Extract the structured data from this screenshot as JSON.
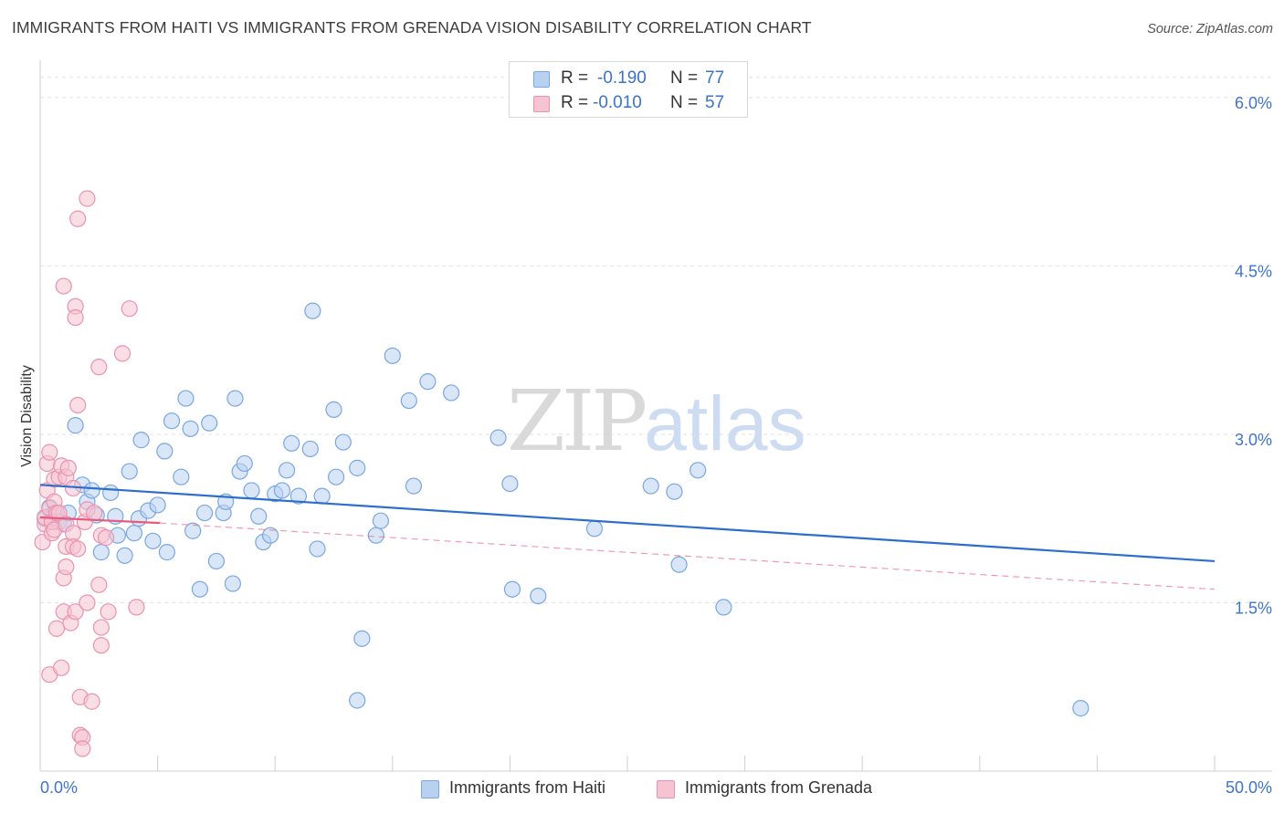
{
  "title": "IMMIGRANTS FROM HAITI VS IMMIGRANTS FROM GRENADA VISION DISABILITY CORRELATION CHART",
  "source": "Source: ZipAtlas.com",
  "watermark": {
    "zip": "ZIP",
    "atlas": "atlas"
  },
  "colors": {
    "haiti_fill": "#b9d1f0",
    "haiti_stroke": "#7aa7e0",
    "haiti_line": "#2b6fcb",
    "grenada_fill": "#f6c3d2",
    "grenada_stroke": "#ea93ae",
    "grenada_line": "#e8587f",
    "axis_text": "#3f74c8",
    "grid": "#e2e2e2"
  },
  "legend_top": [
    {
      "r_label": "R =",
      "r_value": "-0.190",
      "n_label": "N =",
      "n_value": "77"
    },
    {
      "r_label": "R =",
      "r_value": "-0.010",
      "n_label": "N =",
      "n_value": "57"
    }
  ],
  "legend_bottom": [
    "Immigrants from Haiti",
    "Immigrants from Grenada"
  ],
  "chart_data": {
    "type": "scatter",
    "title": "IMMIGRANTS FROM HAITI VS IMMIGRANTS FROM GRENADA VISION DISABILITY CORRELATION CHART",
    "xlabel": "",
    "ylabel": "Vision Disability",
    "xlim": [
      0,
      50
    ],
    "ylim": [
      0,
      6.3
    ],
    "x_tick_labels": [
      "0.0%",
      "50.0%"
    ],
    "y_ticks": [
      1.5,
      3.0,
      4.5,
      6.0
    ],
    "y_tick_labels": [
      "1.5%",
      "3.0%",
      "4.5%",
      "6.0%"
    ],
    "grid": true,
    "series": [
      {
        "name": "Immigrants from Haiti",
        "r": -0.19,
        "n": 77,
        "trend": {
          "x": [
            0,
            50
          ],
          "y": [
            2.55,
            1.87
          ],
          "style": "solid"
        },
        "points": [
          [
            0.2,
            2.25
          ],
          [
            0.4,
            2.35
          ],
          [
            0.6,
            2.3
          ],
          [
            0.8,
            2.22
          ],
          [
            1.0,
            2.2
          ],
          [
            1.2,
            2.3
          ],
          [
            1.5,
            3.08
          ],
          [
            1.8,
            2.55
          ],
          [
            2.0,
            2.4
          ],
          [
            2.2,
            2.5
          ],
          [
            2.4,
            2.28
          ],
          [
            2.6,
            1.95
          ],
          [
            3.0,
            2.48
          ],
          [
            3.2,
            2.27
          ],
          [
            3.3,
            2.1
          ],
          [
            3.6,
            1.92
          ],
          [
            3.8,
            2.67
          ],
          [
            4.0,
            2.12
          ],
          [
            4.2,
            2.25
          ],
          [
            4.3,
            2.95
          ],
          [
            4.6,
            2.32
          ],
          [
            4.8,
            2.05
          ],
          [
            5.0,
            2.37
          ],
          [
            5.3,
            2.85
          ],
          [
            5.4,
            1.95
          ],
          [
            5.6,
            3.12
          ],
          [
            6.0,
            2.62
          ],
          [
            6.2,
            3.32
          ],
          [
            6.4,
            3.05
          ],
          [
            6.5,
            2.14
          ],
          [
            6.8,
            1.62
          ],
          [
            7.0,
            2.3
          ],
          [
            7.2,
            3.1
          ],
          [
            7.5,
            1.87
          ],
          [
            7.8,
            2.3
          ],
          [
            7.9,
            2.4
          ],
          [
            8.2,
            1.67
          ],
          [
            8.3,
            3.32
          ],
          [
            8.5,
            2.67
          ],
          [
            8.7,
            2.74
          ],
          [
            9.0,
            2.5
          ],
          [
            9.3,
            2.27
          ],
          [
            9.5,
            2.04
          ],
          [
            9.8,
            2.1
          ],
          [
            10.0,
            2.47
          ],
          [
            10.3,
            2.5
          ],
          [
            10.5,
            2.68
          ],
          [
            10.7,
            2.92
          ],
          [
            11.0,
            2.45
          ],
          [
            11.5,
            2.87
          ],
          [
            11.6,
            4.1
          ],
          [
            11.8,
            1.98
          ],
          [
            12.0,
            2.45
          ],
          [
            12.5,
            3.22
          ],
          [
            12.6,
            2.62
          ],
          [
            12.9,
            2.93
          ],
          [
            13.5,
            2.7
          ],
          [
            13.7,
            1.18
          ],
          [
            13.5,
            0.63
          ],
          [
            14.3,
            2.1
          ],
          [
            14.5,
            2.23
          ],
          [
            15.0,
            3.7
          ],
          [
            15.7,
            3.3
          ],
          [
            15.9,
            2.54
          ],
          [
            16.5,
            3.47
          ],
          [
            17.5,
            3.37
          ],
          [
            19.5,
            2.97
          ],
          [
            20.0,
            2.56
          ],
          [
            20.1,
            1.62
          ],
          [
            21.2,
            1.56
          ],
          [
            23.6,
            2.16
          ],
          [
            26.0,
            2.54
          ],
          [
            27.0,
            2.49
          ],
          [
            27.2,
            1.84
          ],
          [
            28.0,
            2.68
          ],
          [
            29.1,
            1.46
          ],
          [
            44.3,
            0.56
          ]
        ]
      },
      {
        "name": "Immigrants from Grenada",
        "r": -0.01,
        "n": 57,
        "trend": {
          "x": [
            0,
            5.1
          ],
          "y": [
            2.26,
            2.21
          ],
          "style": "solid"
        },
        "trend_extension": {
          "x": [
            5.1,
            50
          ],
          "y": [
            2.21,
            1.62
          ],
          "style": "dashed"
        },
        "points": [
          [
            0.1,
            2.04
          ],
          [
            0.2,
            2.2
          ],
          [
            0.2,
            2.26
          ],
          [
            0.3,
            2.5
          ],
          [
            0.3,
            2.74
          ],
          [
            0.4,
            2.34
          ],
          [
            0.4,
            2.84
          ],
          [
            0.4,
            0.86
          ],
          [
            0.5,
            2.12
          ],
          [
            0.5,
            2.22
          ],
          [
            0.6,
            2.15
          ],
          [
            0.6,
            2.6
          ],
          [
            0.6,
            2.4
          ],
          [
            0.7,
            1.27
          ],
          [
            0.7,
            2.3
          ],
          [
            0.8,
            2.3
          ],
          [
            0.8,
            2.62
          ],
          [
            0.9,
            2.72
          ],
          [
            0.9,
            0.92
          ],
          [
            1.0,
            1.42
          ],
          [
            1.0,
            1.72
          ],
          [
            1.0,
            4.32
          ],
          [
            1.1,
            2.0
          ],
          [
            1.1,
            1.82
          ],
          [
            1.1,
            2.2
          ],
          [
            1.1,
            2.62
          ],
          [
            1.2,
            2.7
          ],
          [
            1.3,
            1.32
          ],
          [
            1.4,
            2.12
          ],
          [
            1.4,
            2.52
          ],
          [
            1.5,
            1.42
          ],
          [
            1.4,
            2.0
          ],
          [
            1.5,
            4.14
          ],
          [
            1.5,
            4.04
          ],
          [
            1.6,
            3.26
          ],
          [
            1.6,
            4.92
          ],
          [
            1.6,
            1.98
          ],
          [
            1.7,
            0.66
          ],
          [
            1.7,
            0.32
          ],
          [
            1.8,
            0.3
          ],
          [
            1.8,
            0.2
          ],
          [
            1.9,
            2.22
          ],
          [
            2.0,
            1.5
          ],
          [
            2.0,
            2.33
          ],
          [
            2.2,
            0.62
          ],
          [
            2.0,
            5.1
          ],
          [
            2.5,
            1.66
          ],
          [
            2.5,
            3.6
          ],
          [
            2.6,
            1.28
          ],
          [
            2.6,
            1.12
          ],
          [
            2.9,
            1.42
          ],
          [
            2.6,
            2.1
          ],
          [
            2.3,
            2.3
          ],
          [
            2.8,
            2.08
          ],
          [
            3.5,
            3.72
          ],
          [
            3.8,
            4.12
          ],
          [
            4.1,
            1.46
          ]
        ]
      }
    ]
  }
}
